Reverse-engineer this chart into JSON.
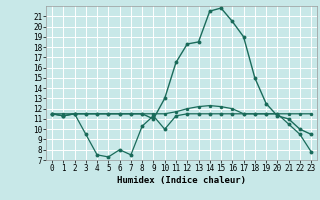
{
  "xlabel": "Humidex (Indice chaleur)",
  "background_color": "#c8e8e8",
  "grid_color": "#ffffff",
  "line_color": "#1a6b5a",
  "xlim": [
    -0.5,
    23.5
  ],
  "ylim": [
    7,
    22
  ],
  "xticks": [
    0,
    1,
    2,
    3,
    4,
    5,
    6,
    7,
    8,
    9,
    10,
    11,
    12,
    13,
    14,
    15,
    16,
    17,
    18,
    19,
    20,
    21,
    22,
    23
  ],
  "yticks": [
    7,
    8,
    9,
    10,
    11,
    12,
    13,
    14,
    15,
    16,
    17,
    18,
    19,
    20,
    21
  ],
  "line1_x": [
    0,
    1,
    2,
    3,
    4,
    5,
    6,
    7,
    8,
    9,
    10,
    11,
    12,
    13,
    14,
    15,
    16,
    17,
    18,
    19,
    20,
    21,
    22,
    23
  ],
  "line1_y": [
    11.5,
    11.5,
    11.5,
    11.5,
    11.5,
    11.5,
    11.5,
    11.5,
    11.5,
    11.5,
    11.5,
    11.7,
    12.0,
    12.2,
    12.3,
    12.2,
    12.0,
    11.5,
    11.5,
    11.5,
    11.5,
    11.5,
    11.5,
    11.5
  ],
  "line2_x": [
    0,
    1,
    2,
    3,
    4,
    5,
    6,
    7,
    8,
    9,
    10,
    11,
    12,
    13,
    14,
    15,
    16,
    17,
    18,
    19,
    20,
    21,
    22,
    23
  ],
  "line2_y": [
    11.5,
    11.3,
    11.5,
    9.5,
    7.5,
    7.3,
    8.0,
    7.5,
    10.3,
    11.3,
    10.0,
    11.3,
    11.5,
    11.5,
    11.5,
    11.5,
    11.5,
    11.5,
    11.5,
    11.5,
    11.5,
    10.5,
    9.5,
    7.8
  ],
  "line3_x": [
    0,
    1,
    2,
    3,
    4,
    5,
    6,
    7,
    8,
    9,
    10,
    11,
    12,
    13,
    14,
    15,
    16,
    17,
    18,
    19,
    20,
    21,
    22,
    23
  ],
  "line3_y": [
    11.5,
    11.3,
    11.5,
    11.5,
    11.5,
    11.5,
    11.5,
    11.5,
    11.5,
    11.0,
    13.0,
    16.5,
    18.3,
    18.5,
    21.5,
    21.8,
    20.5,
    19.0,
    15.0,
    12.5,
    11.3,
    11.0,
    10.0,
    9.5
  ]
}
